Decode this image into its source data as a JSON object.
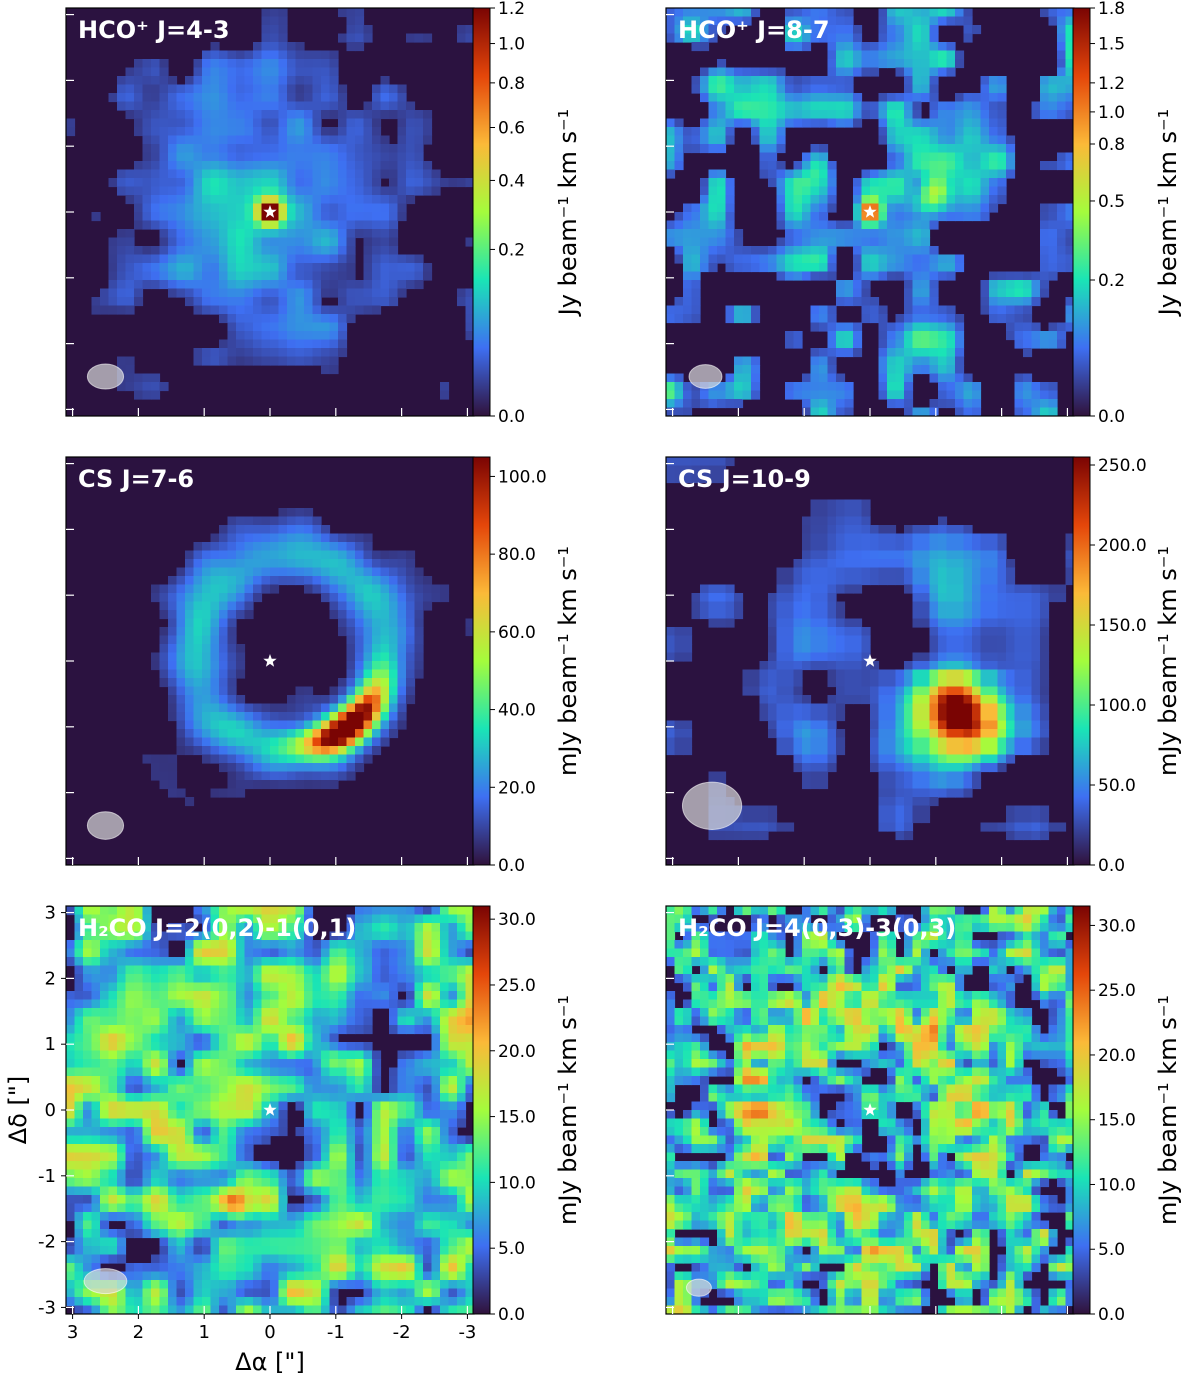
{
  "colormap": [
    "#30123b",
    "#3e6ff2",
    "#1ae4b6",
    "#a4fc3c",
    "#fbb938",
    "#e4460a",
    "#7a0403"
  ],
  "background_color": "#2b1240",
  "star_color": "#ffffff",
  "beam_color": "#d9d9d9",
  "x_axis": {
    "label": "Δα [\"]",
    "ticks": [
      "3",
      "2",
      "1",
      "0",
      "-1",
      "-2",
      "-3"
    ]
  },
  "y_axis": {
    "label": "Δδ [\"]",
    "ticks": [
      "3",
      "2",
      "1",
      "0",
      "-1",
      "-2",
      "-3"
    ]
  },
  "chart_data": [
    {
      "type": "heatmap",
      "title": "HCO⁺ J=4-3",
      "colorbar_label": "Jy beam⁻¹ km s⁻¹",
      "colorbar_ticks": [
        "0.0",
        "0.2",
        "0.4",
        "0.6",
        "0.8",
        "1.0",
        "1.2"
      ],
      "colorbar_tick_positions": [
        0.0,
        0.2,
        0.4,
        0.6,
        0.8,
        1.0,
        1.2
      ],
      "colorbar_scale": "power",
      "vmin": 0.0,
      "vmax": 1.2,
      "pattern": "disk-peak",
      "star": {
        "x": 0.0,
        "y": 0.0
      },
      "beam": {
        "x": 2.5,
        "y": -2.5,
        "major": 0.55,
        "minor": 0.38
      }
    },
    {
      "type": "heatmap",
      "title": "HCO⁺ J=8-7",
      "colorbar_label": "Jy beam⁻¹ km s⁻¹",
      "colorbar_ticks": [
        "0.0",
        "0.2",
        "0.5",
        "0.8",
        "1.0",
        "1.2",
        "1.5",
        "1.8"
      ],
      "colorbar_tick_positions": [
        0.0,
        0.2,
        0.5,
        0.8,
        1.0,
        1.2,
        1.5,
        1.8
      ],
      "colorbar_scale": "power",
      "vmin": 0.0,
      "vmax": 1.8,
      "pattern": "clumpy-noise",
      "star": {
        "x": 0.0,
        "y": 0.0
      },
      "beam": {
        "x": 2.5,
        "y": -2.5,
        "major": 0.5,
        "minor": 0.36
      }
    },
    {
      "type": "heatmap",
      "title": "CS J=7-6",
      "colorbar_label": "mJy beam⁻¹ km s⁻¹",
      "colorbar_ticks": [
        "0.0",
        "20.0",
        "40.0",
        "60.0",
        "80.0",
        "100.0"
      ],
      "colorbar_tick_positions": [
        0.0,
        20.0,
        40.0,
        60.0,
        80.0,
        100.0
      ],
      "colorbar_scale": "linear",
      "vmin": 0.0,
      "vmax": 105.0,
      "pattern": "ring-arc",
      "star": {
        "x": 0.0,
        "y": 0.0
      },
      "beam": {
        "x": 2.5,
        "y": -2.5,
        "major": 0.55,
        "minor": 0.42
      }
    },
    {
      "type": "heatmap",
      "title": "CS J=10-9",
      "colorbar_label": "mJy beam⁻¹ km s⁻¹",
      "colorbar_ticks": [
        "0.0",
        "50.0",
        "100.0",
        "150.0",
        "200.0",
        "250.0"
      ],
      "colorbar_tick_positions": [
        0.0,
        50.0,
        100.0,
        150.0,
        200.0,
        250.0
      ],
      "colorbar_scale": "linear",
      "vmin": 0.0,
      "vmax": 255.0,
      "pattern": "blocky-arc",
      "star": {
        "x": 0.0,
        "y": 0.0
      },
      "beam": {
        "x": 2.4,
        "y": -2.2,
        "major": 0.9,
        "minor": 0.72
      }
    },
    {
      "type": "heatmap",
      "title": "H₂CO J=2(0,2)-1(0,1)",
      "colorbar_label": "mJy beam⁻¹ km s⁻¹",
      "colorbar_ticks": [
        "0.0",
        "5.0",
        "10.0",
        "15.0",
        "20.0",
        "25.0",
        "30.0"
      ],
      "colorbar_tick_positions": [
        0.0,
        5.0,
        10.0,
        15.0,
        20.0,
        25.0,
        30.0
      ],
      "colorbar_scale": "linear",
      "vmin": 0.0,
      "vmax": 31.0,
      "pattern": "smooth-noise",
      "star": {
        "x": 0.0,
        "y": 0.0
      },
      "beam": {
        "x": 2.5,
        "y": -2.6,
        "major": 0.65,
        "minor": 0.38
      }
    },
    {
      "type": "heatmap",
      "title": "H₂CO J=4(0,3)-3(0,3)",
      "colorbar_label": "mJy beam⁻¹ km s⁻¹",
      "colorbar_ticks": [
        "0.0",
        "5.0",
        "10.0",
        "15.0",
        "20.0",
        "25.0",
        "30.0"
      ],
      "colorbar_tick_positions": [
        0.0,
        5.0,
        10.0,
        15.0,
        20.0,
        25.0,
        30.0
      ],
      "colorbar_scale": "linear",
      "vmin": 0.0,
      "vmax": 31.5,
      "pattern": "fine-noise",
      "star": {
        "x": 0.0,
        "y": 0.0
      },
      "beam": {
        "x": 2.6,
        "y": -2.7,
        "major": 0.38,
        "minor": 0.26
      }
    }
  ]
}
